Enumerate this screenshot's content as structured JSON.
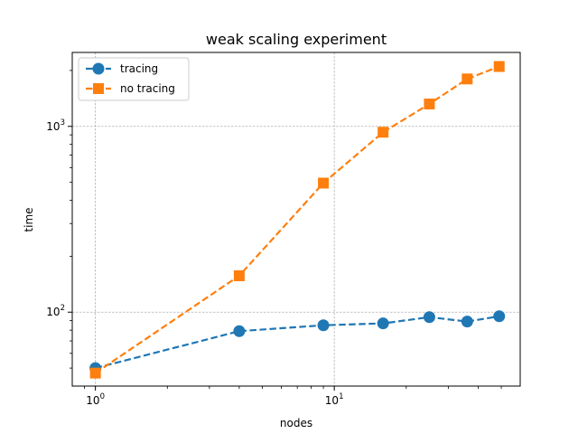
{
  "chart_data": {
    "type": "line",
    "title": "weak scaling experiment",
    "xlabel": "nodes",
    "ylabel": "time",
    "xscale": "log",
    "yscale": "log",
    "xlim": [
      0.8,
      60
    ],
    "ylim": [
      40,
      2500
    ],
    "grid": true,
    "legend_position": "top-left",
    "x_ticks": [
      {
        "value": 1,
        "base": "10",
        "exp": "0"
      },
      {
        "value": 10,
        "base": "10",
        "exp": "1"
      }
    ],
    "y_ticks": [
      {
        "value": 100,
        "base": "10",
        "exp": "2"
      },
      {
        "value": 1000,
        "base": "10",
        "exp": "3"
      }
    ],
    "series": [
      {
        "name": "tracing",
        "color": "#1f77b4",
        "marker": "circle",
        "line_style": "dashed",
        "x": [
          1,
          4,
          9,
          16,
          25,
          36,
          49
        ],
        "y": [
          50,
          79,
          85,
          87,
          94,
          89,
          95
        ]
      },
      {
        "name": "no tracing",
        "color": "#ff7f0e",
        "marker": "square",
        "line_style": "dashed",
        "x": [
          1,
          4,
          9,
          16,
          25,
          36,
          49
        ],
        "y": [
          47,
          157,
          495,
          930,
          1320,
          1800,
          2100
        ]
      }
    ]
  }
}
